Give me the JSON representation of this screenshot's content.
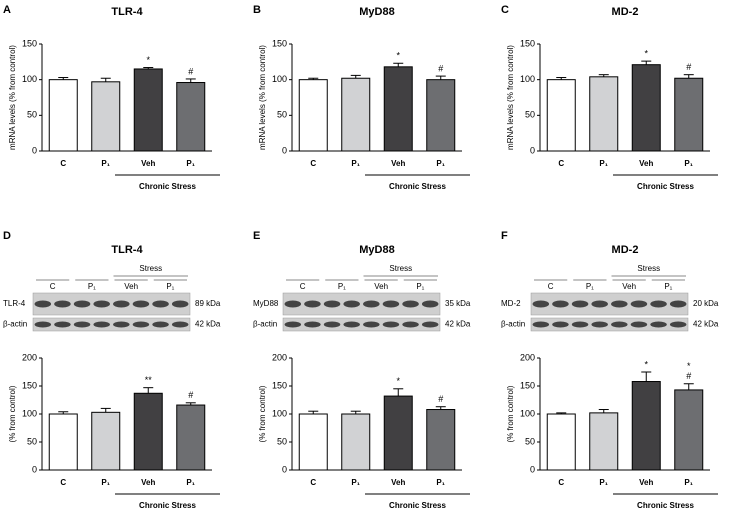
{
  "chart_data": [
    {
      "type": "bar",
      "panel": "A",
      "title": "TLR-4",
      "y_label": "mRNA levels (% from control)",
      "categories": [
        "C",
        "P₁",
        "Veh",
        "P₁"
      ],
      "values": [
        100,
        97,
        115,
        96
      ],
      "errors": [
        3,
        5,
        2,
        5
      ],
      "colors": [
        "#ffffff",
        "#d1d2d4",
        "#414042",
        "#6d6e71"
      ],
      "annotations": [
        null,
        null,
        [
          "*"
        ],
        [
          "#"
        ]
      ],
      "group_label": "Chronic Stress",
      "ylim": [
        0,
        150
      ],
      "yticks": [
        0,
        50,
        100,
        150
      ]
    },
    {
      "type": "bar",
      "panel": "B",
      "title": "MyD88",
      "y_label": "mRNA levels (% from control)",
      "categories": [
        "C",
        "P₁",
        "Veh",
        "P₁"
      ],
      "values": [
        100,
        102,
        118,
        100
      ],
      "errors": [
        2,
        4,
        5,
        5
      ],
      "colors": [
        "#ffffff",
        "#d1d2d4",
        "#414042",
        "#6d6e71"
      ],
      "annotations": [
        null,
        null,
        [
          "*"
        ],
        [
          "#"
        ]
      ],
      "group_label": "Chronic Stress",
      "ylim": [
        0,
        150
      ],
      "yticks": [
        0,
        50,
        100,
        150
      ]
    },
    {
      "type": "bar",
      "panel": "C",
      "title": "MD-2",
      "y_label": "mRNA levels (% from control)",
      "categories": [
        "C",
        "P₁",
        "Veh",
        "P₁"
      ],
      "values": [
        100,
        104,
        121,
        102
      ],
      "errors": [
        3,
        3,
        5,
        5
      ],
      "colors": [
        "#ffffff",
        "#d1d2d4",
        "#414042",
        "#6d6e71"
      ],
      "annotations": [
        null,
        null,
        [
          "*"
        ],
        [
          "#"
        ]
      ],
      "group_label": "Chronic Stress",
      "ylim": [
        0,
        150
      ],
      "yticks": [
        0,
        50,
        100,
        150
      ]
    },
    {
      "type": "bar",
      "panel": "D",
      "title": "TLR-4",
      "y_label": "(% from control)",
      "blot": {
        "protein": "TLR-4",
        "protein_kda": "89 kDa",
        "loading": "β-actin",
        "loading_kda": "42 kDa",
        "group": "Stress"
      },
      "categories": [
        "C",
        "P₁",
        "Veh",
        "P₁"
      ],
      "values": [
        100,
        103,
        137,
        116
      ],
      "errors": [
        4,
        7,
        10,
        4
      ],
      "colors": [
        "#ffffff",
        "#d1d2d4",
        "#414042",
        "#6d6e71"
      ],
      "annotations": [
        null,
        null,
        [
          "**"
        ],
        [
          "#"
        ]
      ],
      "group_label": "Chronic Stress",
      "ylim": [
        0,
        200
      ],
      "yticks": [
        0,
        50,
        100,
        150,
        200
      ]
    },
    {
      "type": "bar",
      "panel": "E",
      "title": "MyD88",
      "y_label": "(% from control)",
      "blot": {
        "protein": "MyD88",
        "protein_kda": "35 kDa",
        "loading": "β-actin",
        "loading_kda": "42 kDa",
        "group": "Stress"
      },
      "categories": [
        "C",
        "P₁",
        "Veh",
        "P₁"
      ],
      "values": [
        100,
        100,
        132,
        108
      ],
      "errors": [
        5,
        5,
        13,
        5
      ],
      "colors": [
        "#ffffff",
        "#d1d2d4",
        "#414042",
        "#6d6e71"
      ],
      "annotations": [
        null,
        null,
        [
          "*"
        ],
        [
          "#"
        ]
      ],
      "group_label": "Chronic Stress",
      "ylim": [
        0,
        200
      ],
      "yticks": [
        0,
        50,
        100,
        150,
        200
      ]
    },
    {
      "type": "bar",
      "panel": "F",
      "title": "MD-2",
      "y_label": "(% from control)",
      "blot": {
        "protein": "MD-2",
        "protein_kda": "20 kDa",
        "loading": "β-actin",
        "loading_kda": "42 kDa",
        "group": "Stress"
      },
      "categories": [
        "C",
        "P₁",
        "Veh",
        "P₁"
      ],
      "values": [
        100,
        102,
        158,
        143
      ],
      "errors": [
        2,
        6,
        17,
        11
      ],
      "colors": [
        "#ffffff",
        "#d1d2d4",
        "#414042",
        "#6d6e71"
      ],
      "annotations": [
        null,
        null,
        [
          "*"
        ],
        [
          "*",
          "#"
        ]
      ],
      "group_label": "Chronic Stress",
      "ylim": [
        0,
        200
      ],
      "yticks": [
        0,
        50,
        100,
        150,
        200
      ]
    }
  ]
}
